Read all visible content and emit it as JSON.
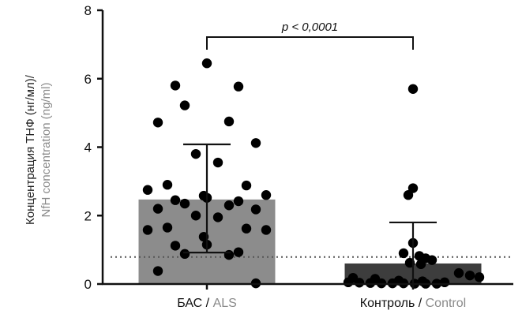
{
  "chart_data": {
    "type": "bar",
    "categories": [
      {
        "ru": "БАС",
        "sep": " / ",
        "en": "ALS"
      },
      {
        "ru": "Контроль",
        "sep": " / ",
        "en": "Control"
      }
    ],
    "values": [
      2.47,
      0.6
    ],
    "error_upper": [
      4.08,
      1.8
    ],
    "error_lower": [
      0.92,
      0.0
    ],
    "points": [
      [
        6.45,
        5.8,
        5.77,
        5.22,
        4.75,
        4.72,
        4.12,
        3.8,
        3.55,
        2.9,
        2.88,
        2.75,
        2.6,
        2.58,
        2.52,
        2.45,
        2.42,
        2.35,
        2.3,
        2.2,
        2.18,
        2.0,
        1.95,
        1.65,
        1.62,
        1.58,
        1.58,
        1.38,
        1.15,
        1.12,
        0.93,
        0.88,
        0.85,
        0.38,
        0.02
      ],
      [
        5.7,
        2.8,
        2.6,
        1.2,
        0.9,
        0.82,
        0.75,
        0.7,
        0.62,
        0.58,
        0.32,
        0.25,
        0.2,
        0.18,
        0.15,
        0.1,
        0.08,
        0.05,
        0.05,
        0.04,
        0.03,
        0.02,
        0.02,
        0.02,
        0.01,
        0.01,
        0.01
      ]
    ],
    "threshold": 0.79,
    "ylim": [
      0,
      8
    ],
    "yticks": [
      0,
      2,
      4,
      6,
      8
    ],
    "ylabel_ru": "Концентрация ТНФ (нг/мл)/",
    "ylabel_en": "NfH concentration (ng/ml)",
    "annotation": "p < 0,0001",
    "colors": {
      "bar_als": "#8c8c8c",
      "bar_control": "#3d3d3d",
      "points": "#000000",
      "english_text": "#8a8a8a",
      "axis": "#111111"
    }
  }
}
